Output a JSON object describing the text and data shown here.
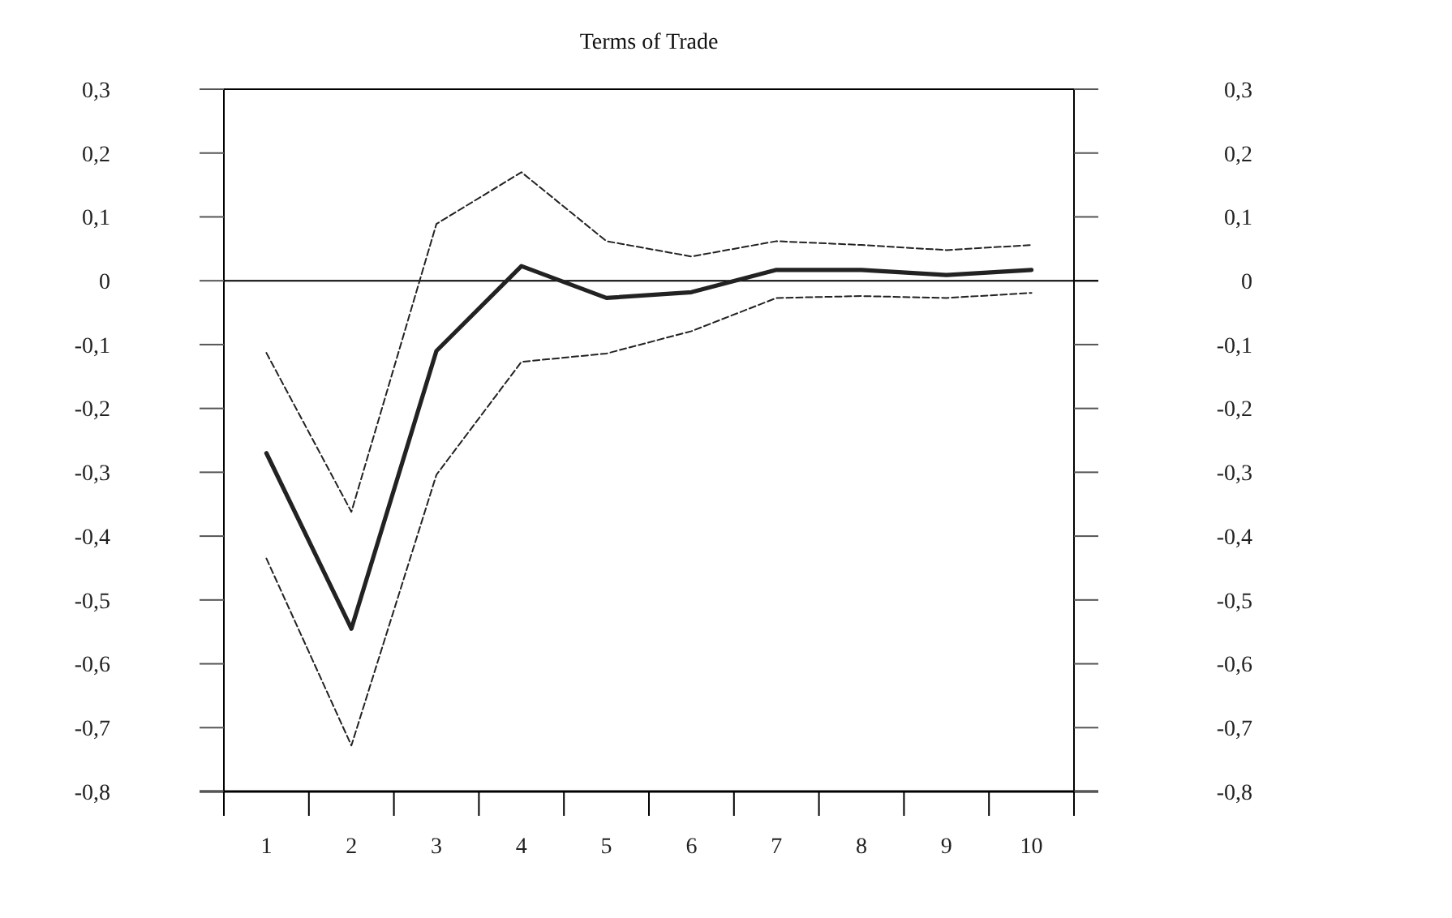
{
  "chart_data": {
    "type": "line",
    "title": "Terms of Trade",
    "categories": [
      "1",
      "2",
      "3",
      "4",
      "5",
      "6",
      "7",
      "8",
      "9",
      "10"
    ],
    "series": [
      {
        "color": "#222222",
        "line_style": "solid",
        "values": [
          -0.27,
          -0.545,
          -0.11,
          0.023,
          -0.027,
          -0.018,
          0.017,
          0.017,
          0.009,
          0.017
        ]
      },
      {
        "color": "#222222",
        "line_style": "dashed",
        "values": [
          -0.113,
          -0.362,
          0.089,
          0.17,
          0.062,
          0.038,
          0.062,
          0.056,
          0.048,
          0.056
        ]
      },
      {
        "color": "#222222",
        "line_style": "dashed",
        "values": [
          -0.435,
          -0.728,
          -0.304,
          -0.127,
          -0.114,
          -0.079,
          -0.027,
          -0.024,
          -0.027,
          -0.019
        ]
      }
    ],
    "ylim": [
      -0.8,
      0.3
    ],
    "yticks": [
      {
        "value": 0.3,
        "label": "0,3"
      },
      {
        "value": 0.2,
        "label": "0,2"
      },
      {
        "value": 0.1,
        "label": "0,1"
      },
      0,
      {
        "value": -0.1,
        "label": "-0,1"
      },
      {
        "value": -0.2,
        "label": "-0,2"
      },
      {
        "value": -0.3,
        "label": "-0,3"
      },
      {
        "value": -0.4,
        "label": "-0,4"
      },
      {
        "value": -0.5,
        "label": "-0,5"
      },
      {
        "value": -0.6,
        "label": "-0,6"
      },
      {
        "value": -0.7,
        "label": "-0,7"
      },
      {
        "value": -0.8,
        "label": "-0,8"
      }
    ],
    "y2lim": [
      -0.8,
      0.3
    ],
    "y2ticks": [
      {
        "value": 0.3,
        "label": "0,3"
      },
      {
        "value": 0.2,
        "label": "0,2"
      },
      {
        "value": 0.1,
        "label": "0,1"
      },
      0,
      {
        "value": -0.1,
        "label": "-0,1"
      },
      {
        "value": -0.2,
        "label": "-0,2"
      },
      {
        "value": -0.3,
        "label": "-0,3"
      },
      {
        "value": -0.4,
        "label": "-0,4"
      },
      {
        "value": -0.5,
        "label": "-0,5"
      },
      {
        "value": -0.6,
        "label": "-0,6"
      },
      {
        "value": -0.7,
        "label": "-0,7"
      },
      {
        "value": -0.8,
        "label": "-0,8"
      }
    ],
    "ref_lines": [
      {
        "axis": "y",
        "value": 0,
        "color": "#000000",
        "line_style": "solid"
      }
    ],
    "marker": "none"
  }
}
